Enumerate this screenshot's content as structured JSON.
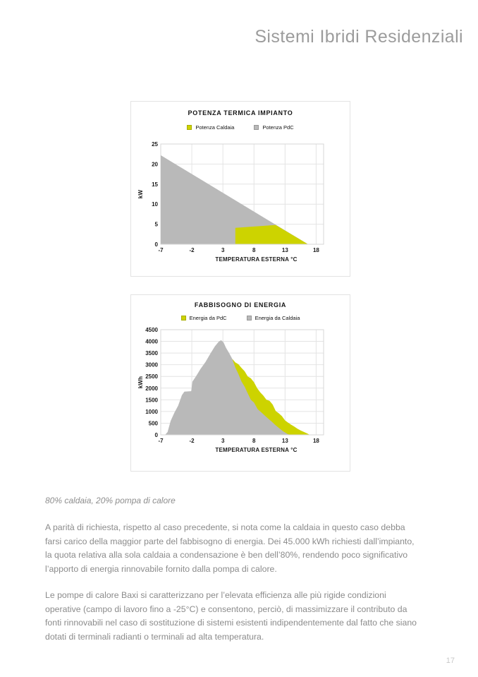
{
  "page": {
    "title": "Sistemi Ibridi Residenziali",
    "number": "17"
  },
  "caption": "80% caldaia, 20% pompa di calore",
  "paragraphs": [
    "A parità di richiesta, rispetto al caso precedente, si nota come la caldaia in questo caso debba farsi carico della maggior parte del fabbisogno di energia. Dei 45.000 kWh richiesti dall’impianto, la quota relativa alla sola caldaia a condensazione è ben dell’80%, rendendo poco significativo l’apporto di energia rinnovabile fornito dalla pompa di calore.",
    "Le pompe di calore Baxi si caratterizzano per l’elevata efficienza alle più rigide condizioni operative (campo di lavoro fino a -25°C) e consentono, perciò, di massimizzare il contributo da fonti rinnovabili nel caso di sostituzione di sistemi esistenti indipendentemente dal fatto che siano dotati di terminali radianti o terminali ad alta temperatura."
  ],
  "colors": {
    "accent_yellow": "#cdd300",
    "area_gray": "#b9b9b9",
    "grid": "#e4e4e4",
    "frame": "#d7d7d7",
    "body_text": "#8b8b8b",
    "header_text": "#9c9c9c"
  },
  "chart_data": [
    {
      "type": "area",
      "title": "POTENZA TERMICA IMPIANTO",
      "xlabel": "TEMPERATURA ESTERNA °C",
      "ylabel": "kW",
      "xlim": [
        -7,
        19.2
      ],
      "ylim": [
        0,
        25
      ],
      "xticks": [
        -7,
        -2,
        3,
        8,
        13,
        18
      ],
      "yticks": [
        0,
        5,
        10,
        15,
        20,
        25
      ],
      "grid": true,
      "legend_position": "top",
      "legend": [
        {
          "label": "Potenza Caldaia",
          "color": "#cdd300"
        },
        {
          "label": "Potenza PdC",
          "color": "#b9b9b9"
        }
      ],
      "plot": {
        "l": 42,
        "t": 16,
        "r": 273,
        "b": 158
      },
      "series": [
        {
          "name": "Potenza PdC",
          "color": "#b9b9b9",
          "points": [
            [
              -7,
              0
            ],
            [
              -7,
              22.2
            ],
            [
              16.7,
              0
            ]
          ]
        },
        {
          "name": "Potenza Caldaia",
          "color": "#cdd300",
          "points": [
            [
              5,
              0
            ],
            [
              5,
              4.1
            ],
            [
              11.5,
              4.8
            ],
            [
              16.7,
              0
            ]
          ]
        }
      ]
    },
    {
      "type": "area",
      "title": "FABBISOGNO DI ENERGIA",
      "xlabel": "TEMPERATURA ESTERNA °C",
      "ylabel": "kWh",
      "xlim": [
        -7,
        19.2
      ],
      "ylim": [
        0,
        4500
      ],
      "xticks": [
        -7,
        -2,
        3,
        8,
        13,
        18
      ],
      "yticks": [
        0,
        500,
        1000,
        1500,
        2000,
        2500,
        3000,
        3500,
        4000,
        4500
      ],
      "grid": true,
      "legend_position": "top",
      "legend": [
        {
          "label": "Energia da PdC",
          "color": "#cdd300"
        },
        {
          "label": "Energia da Caldaia",
          "color": "#b9b9b9"
        }
      ],
      "plot": {
        "l": 42,
        "t": 9,
        "r": 273,
        "b": 158
      },
      "series": [
        {
          "name": "Energia da PdC",
          "color": "#cdd300",
          "points": [
            [
              4.5,
              0
            ],
            [
              4.5,
              3250
            ],
            [
              5,
              3100
            ],
            [
              5.5,
              3020
            ],
            [
              6,
              2860
            ],
            [
              6.5,
              2720
            ],
            [
              7,
              2500
            ],
            [
              7.5,
              2420
            ],
            [
              8,
              2250
            ],
            [
              8.5,
              2000
            ],
            [
              9,
              1820
            ],
            [
              9.5,
              1680
            ],
            [
              10,
              1500
            ],
            [
              10.5,
              1460
            ],
            [
              11,
              1300
            ],
            [
              11.5,
              1020
            ],
            [
              12,
              920
            ],
            [
              12.5,
              800
            ],
            [
              13,
              620
            ],
            [
              13.5,
              520
            ],
            [
              14,
              430
            ],
            [
              14.5,
              350
            ],
            [
              15,
              260
            ],
            [
              15.5,
              190
            ],
            [
              16,
              130
            ],
            [
              16.5,
              70
            ],
            [
              17,
              0
            ]
          ]
        },
        {
          "name": "Energia da Caldaia",
          "color": "#b9b9b9",
          "points": [
            [
              -6.3,
              0
            ],
            [
              -5.9,
              120
            ],
            [
              -5.4,
              600
            ],
            [
              -4.8,
              950
            ],
            [
              -4.2,
              1250
            ],
            [
              -3.6,
              1700
            ],
            [
              -3.2,
              1850
            ],
            [
              -2.1,
              1870
            ],
            [
              -1.9,
              2280
            ],
            [
              -1.3,
              2520
            ],
            [
              -0.6,
              2820
            ],
            [
              0.2,
              3120
            ],
            [
              1,
              3480
            ],
            [
              1.7,
              3780
            ],
            [
              2.3,
              3980
            ],
            [
              2.7,
              4050
            ],
            [
              3.1,
              3960
            ],
            [
              3.5,
              3720
            ],
            [
              4,
              3500
            ],
            [
              4.5,
              3250
            ],
            [
              5,
              2880
            ],
            [
              5.5,
              2600
            ],
            [
              6,
              2280
            ],
            [
              6.5,
              2060
            ],
            [
              7,
              1780
            ],
            [
              7.5,
              1500
            ],
            [
              8,
              1380
            ],
            [
              8.6,
              1100
            ],
            [
              9.2,
              960
            ],
            [
              10,
              760
            ],
            [
              10.8,
              580
            ],
            [
              11.4,
              430
            ],
            [
              12,
              300
            ],
            [
              12.7,
              150
            ],
            [
              13.4,
              40
            ],
            [
              13.8,
              0
            ]
          ]
        }
      ]
    }
  ]
}
